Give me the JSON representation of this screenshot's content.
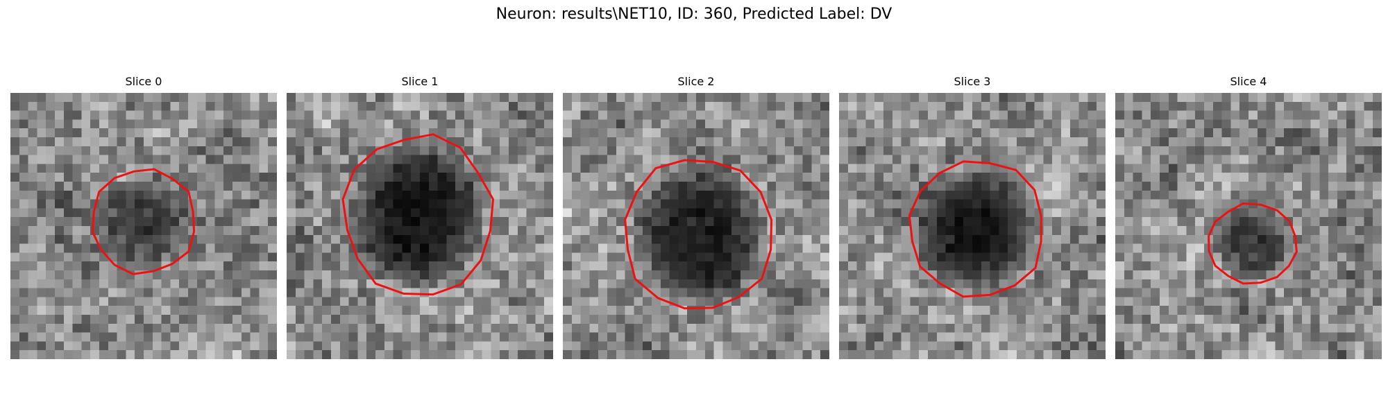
{
  "figure": {
    "suptitle": "Neuron: results\\NET10, ID: 360, Predicted Label: DV"
  },
  "colors": {
    "contour": "#ee1111",
    "background": "#ffffff"
  },
  "image_grid": {
    "pixels_per_side": 30
  },
  "slices": [
    {
      "title": "Slice 0",
      "seed": 11,
      "blob": {
        "cx": 15.0,
        "cy": 14.5,
        "rx": 5.6,
        "ry": 5.6,
        "darkness": 0.55
      }
    },
    {
      "title": "Slice 1",
      "seed": 23,
      "blob": {
        "cx": 14.8,
        "cy": 13.8,
        "rx": 8.0,
        "ry": 8.6,
        "darkness": 0.85
      }
    },
    {
      "title": "Slice 2",
      "seed": 37,
      "blob": {
        "cx": 15.3,
        "cy": 16.0,
        "rx": 8.0,
        "ry": 8.3,
        "darkness": 0.8
      }
    },
    {
      "title": "Slice 3",
      "seed": 41,
      "blob": {
        "cx": 15.5,
        "cy": 15.3,
        "rx": 7.3,
        "ry": 7.3,
        "darkness": 0.85
      }
    },
    {
      "title": "Slice 4",
      "seed": 53,
      "blob": {
        "cx": 15.4,
        "cy": 17.0,
        "rx": 4.8,
        "ry": 4.3,
        "darkness": 0.55
      }
    }
  ]
}
